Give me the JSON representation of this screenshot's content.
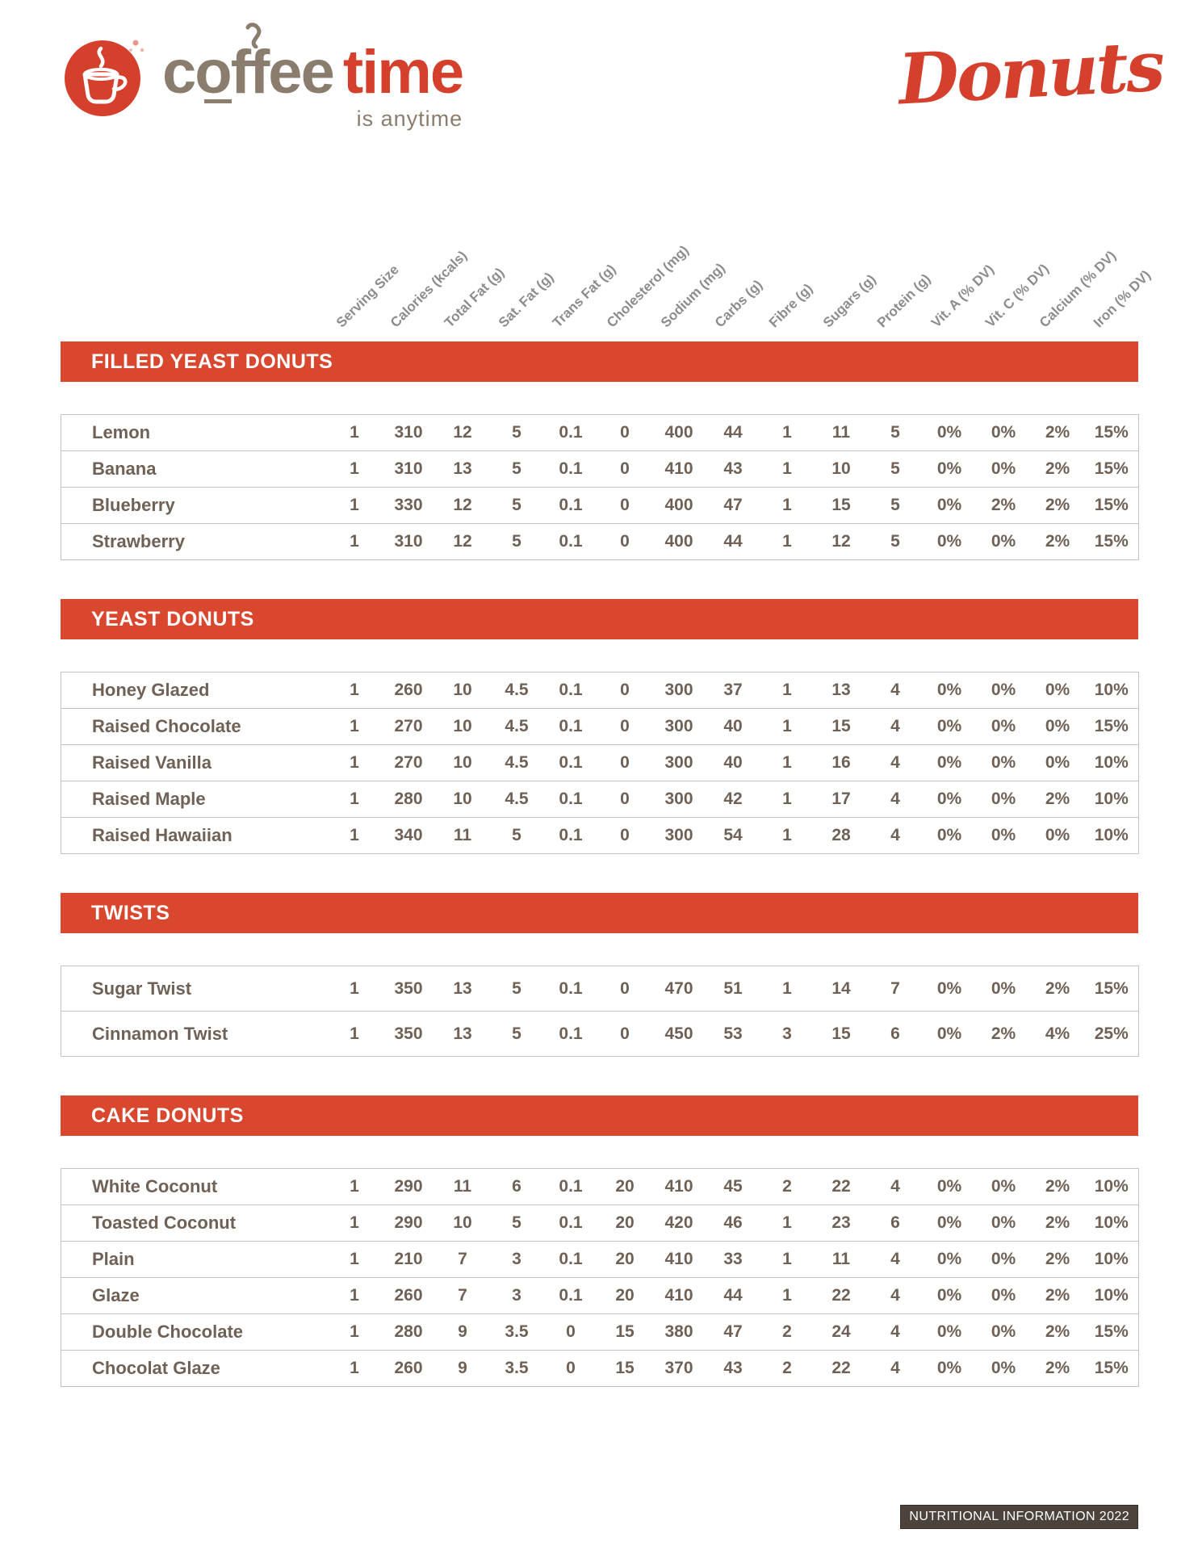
{
  "header": {
    "brand_primary": "coffee",
    "brand_secondary": "time",
    "tagline": "is anytime",
    "script_title": "Donuts"
  },
  "table": {
    "columns": [
      "Serving Size",
      "Calories (kcals)",
      "Total Fat (g)",
      "Sat. Fat (g)",
      "Trans Fat (g)",
      "Cholesterol (mg)",
      "Sodium (mg)",
      "Carbs (g)",
      "Fibre (g)",
      "Sugars (g)",
      "Protein (g)",
      "Vit. A (% DV)",
      "Vit. C (% DV)",
      "Calcium (% DV)",
      "Iron (% DV)"
    ]
  },
  "sections": [
    {
      "title": "FILLED YEAST DONUTS",
      "rows": [
        {
          "name": "Lemon",
          "values": [
            "1",
            "310",
            "12",
            "5",
            "0.1",
            "0",
            "400",
            "44",
            "1",
            "11",
            "5",
            "0%",
            "0%",
            "2%",
            "15%"
          ]
        },
        {
          "name": "Banana",
          "values": [
            "1",
            "310",
            "13",
            "5",
            "0.1",
            "0",
            "410",
            "43",
            "1",
            "10",
            "5",
            "0%",
            "0%",
            "2%",
            "15%"
          ]
        },
        {
          "name": "Blueberry",
          "values": [
            "1",
            "330",
            "12",
            "5",
            "0.1",
            "0",
            "400",
            "47",
            "1",
            "15",
            "5",
            "0%",
            "2%",
            "2%",
            "15%"
          ]
        },
        {
          "name": "Strawberry",
          "values": [
            "1",
            "310",
            "12",
            "5",
            "0.1",
            "0",
            "400",
            "44",
            "1",
            "12",
            "5",
            "0%",
            "0%",
            "2%",
            "15%"
          ]
        }
      ]
    },
    {
      "title": "YEAST DONUTS",
      "rows": [
        {
          "name": "Honey Glazed",
          "values": [
            "1",
            "260",
            "10",
            "4.5",
            "0.1",
            "0",
            "300",
            "37",
            "1",
            "13",
            "4",
            "0%",
            "0%",
            "0%",
            "10%"
          ]
        },
        {
          "name": "Raised Chocolate",
          "values": [
            "1",
            "270",
            "10",
            "4.5",
            "0.1",
            "0",
            "300",
            "40",
            "1",
            "15",
            "4",
            "0%",
            "0%",
            "0%",
            "15%"
          ]
        },
        {
          "name": "Raised Vanilla",
          "values": [
            "1",
            "270",
            "10",
            "4.5",
            "0.1",
            "0",
            "300",
            "40",
            "1",
            "16",
            "4",
            "0%",
            "0%",
            "0%",
            "10%"
          ]
        },
        {
          "name": "Raised Maple",
          "values": [
            "1",
            "280",
            "10",
            "4.5",
            "0.1",
            "0",
            "300",
            "42",
            "1",
            "17",
            "4",
            "0%",
            "0%",
            "2%",
            "10%"
          ]
        },
        {
          "name": "Raised Hawaiian",
          "values": [
            "1",
            "340",
            "11",
            "5",
            "0.1",
            "0",
            "300",
            "54",
            "1",
            "28",
            "4",
            "0%",
            "0%",
            "0%",
            "10%"
          ]
        }
      ]
    },
    {
      "title": "TWISTS",
      "rows": [
        {
          "name": "Sugar Twist",
          "values": [
            "1",
            "350",
            "13",
            "5",
            "0.1",
            "0",
            "470",
            "51",
            "1",
            "14",
            "7",
            "0%",
            "0%",
            "2%",
            "15%"
          ]
        },
        {
          "name": "Cinnamon Twist",
          "values": [
            "1",
            "350",
            "13",
            "5",
            "0.1",
            "0",
            "450",
            "53",
            "3",
            "15",
            "6",
            "0%",
            "2%",
            "4%",
            "25%"
          ]
        }
      ]
    },
    {
      "title": "CAKE DONUTS",
      "rows": [
        {
          "name": "White Coconut",
          "values": [
            "1",
            "290",
            "11",
            "6",
            "0.1",
            "20",
            "410",
            "45",
            "2",
            "22",
            "4",
            "0%",
            "0%",
            "2%",
            "10%"
          ]
        },
        {
          "name": "Toasted Coconut",
          "values": [
            "1",
            "290",
            "10",
            "5",
            "0.1",
            "20",
            "420",
            "46",
            "1",
            "23",
            "6",
            "0%",
            "0%",
            "2%",
            "10%"
          ]
        },
        {
          "name": "Plain",
          "values": [
            "1",
            "210",
            "7",
            "3",
            "0.1",
            "20",
            "410",
            "33",
            "1",
            "11",
            "4",
            "0%",
            "0%",
            "2%",
            "10%"
          ]
        },
        {
          "name": "Glaze",
          "values": [
            "1",
            "260",
            "7",
            "3",
            "0.1",
            "20",
            "410",
            "44",
            "1",
            "22",
            "4",
            "0%",
            "0%",
            "2%",
            "10%"
          ]
        },
        {
          "name": "Double Chocolate",
          "values": [
            "1",
            "280",
            "9",
            "3.5",
            "0",
            "15",
            "380",
            "47",
            "2",
            "24",
            "4",
            "0%",
            "0%",
            "2%",
            "15%"
          ]
        },
        {
          "name": "Chocolat Glaze",
          "values": [
            "1",
            "260",
            "9",
            "3.5",
            "0",
            "15",
            "370",
            "43",
            "2",
            "22",
            "4",
            "0%",
            "0%",
            "2%",
            "15%"
          ]
        }
      ]
    }
  ],
  "footer": {
    "badge": "NUTRITIONAL INFORMATION 2022"
  },
  "colors": {
    "accent_red": "#d9472f",
    "logo_red": "#d5402c",
    "brand_gray": "#8b7d6e",
    "header_gray": "#8c8c8c",
    "body_text": "#6f6156",
    "footer_bg": "#4b433c"
  }
}
